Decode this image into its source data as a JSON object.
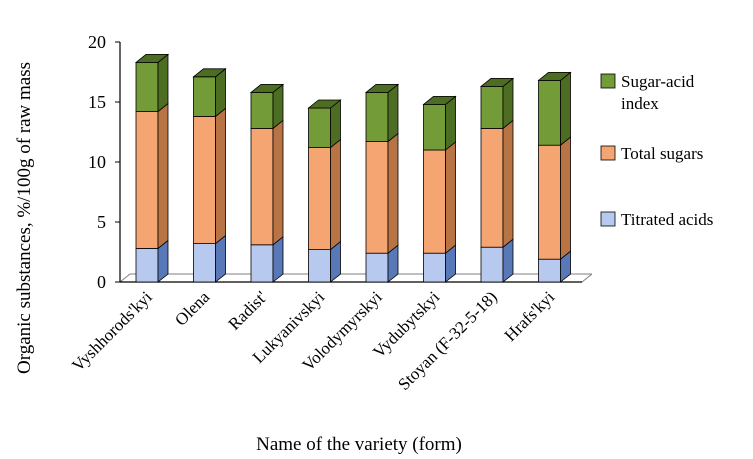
{
  "chart_data": {
    "type": "bar",
    "stacked": true,
    "three_d": true,
    "title": "",
    "xlabel": "Name of the variety (form)",
    "ylabel": "Organic substances, %/100g of raw mass",
    "ylim": [
      0,
      20
    ],
    "yticks": [
      "0",
      "5",
      "10",
      "15",
      "20"
    ],
    "grid": false,
    "legend_position": "right",
    "categories": [
      "Vyshhorods'kyi",
      "Olena",
      "Radist'",
      "Lukyanivskyi",
      "Volodymyrskyi",
      "Vydubytskyi",
      "Stoyan (F-32-5-18)",
      "Hrafs'kyi"
    ],
    "series": [
      {
        "name": "Titrated acids",
        "color": "#b7c9ee",
        "side": "#5878b8",
        "values": [
          2.8,
          3.2,
          3.1,
          2.7,
          2.4,
          2.4,
          2.9,
          1.9
        ]
      },
      {
        "name": "Total sugars",
        "color": "#f5a572",
        "side": "#b87444",
        "values": [
          11.4,
          10.6,
          9.7,
          8.5,
          9.3,
          8.6,
          9.9,
          9.5
        ]
      },
      {
        "name": "Sugar-acid index",
        "color": "#739b37",
        "side": "#4c6d22",
        "values": [
          4.1,
          3.3,
          3.0,
          3.3,
          4.1,
          3.8,
          3.5,
          5.4
        ]
      }
    ],
    "legend": [
      "Sugar-acid index",
      "Total sugars",
      "Titrated acids"
    ]
  }
}
